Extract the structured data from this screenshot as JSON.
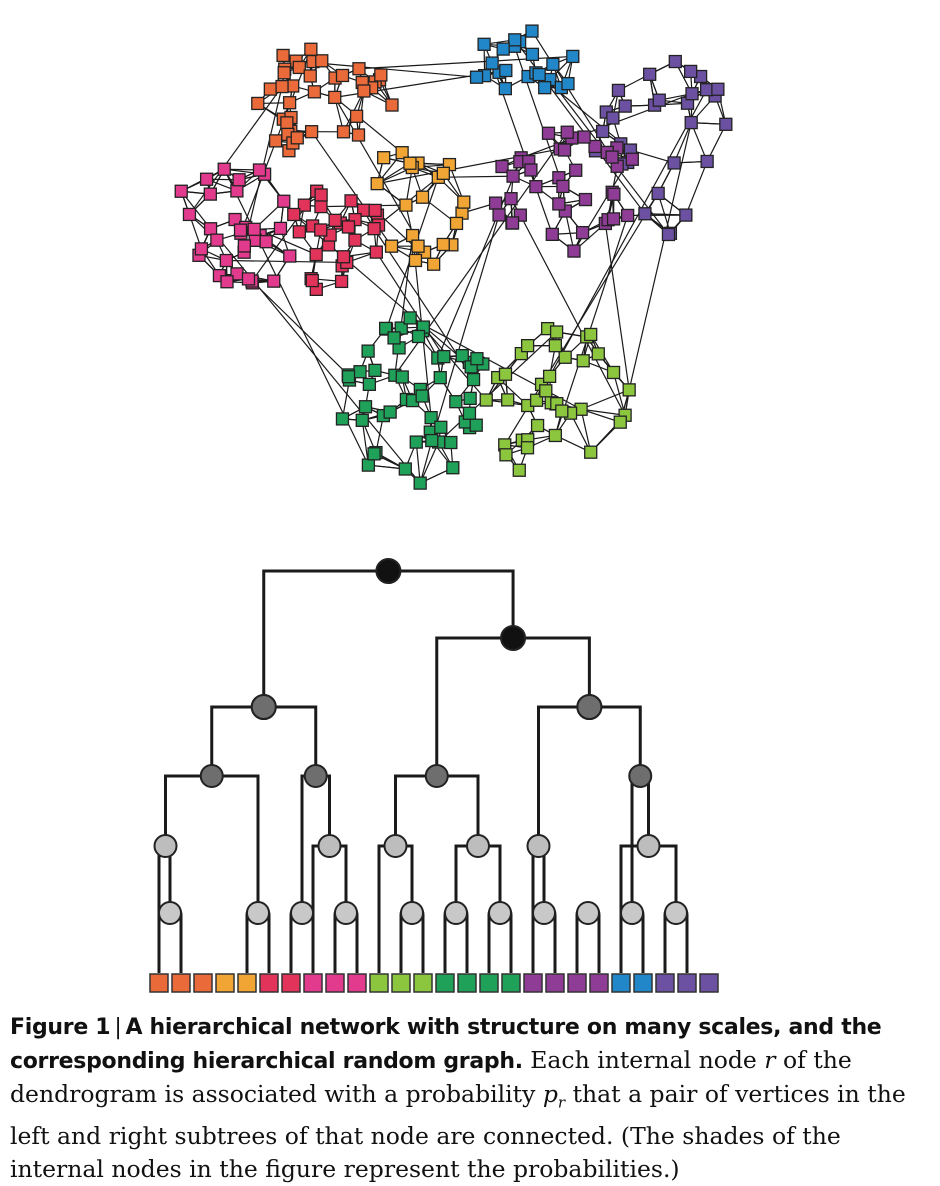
{
  "colors": {
    "orange_red": "#ea6a3a",
    "orange": "#f0a534",
    "crimson": "#e2335b",
    "pink": "#e23a8d",
    "light_green": "#8cc63e",
    "green": "#1fa15a",
    "purple": "#8e3c95",
    "blue": "#2287c8",
    "violet": "#6c51a3",
    "root_node": "#111111",
    "level1_node": "#1a1a1a",
    "level2_node": "#6e6e6e",
    "level3_node": "#9a9a9a",
    "level4_node": "#bdbdbd",
    "level5_node": "#c8c8c8"
  },
  "caption": {
    "label": "Figure 1",
    "separator": "|",
    "title": "A hierarchical network with structure on many scales, and the corresponding hierarchical random graph.",
    "text_1": "Each internal node",
    "symbol_r": "r",
    "text_2": "of the dendrogram is associated with a probability",
    "symbol_p": "p",
    "symbol_p_sub": "r",
    "text_3": "that a pair of vertices in the left and right subtrees of that node are connected. (The shades of the internal nodes in the figure represent the probabilities.)"
  },
  "dendrogram": {
    "leaf_colors": [
      "orange_red",
      "orange_red",
      "orange_red",
      "orange",
      "orange",
      "crimson",
      "crimson",
      "pink",
      "pink",
      "pink",
      "light_green",
      "light_green",
      "light_green",
      "green",
      "green",
      "green",
      "green",
      "purple",
      "purple",
      "purple",
      "purple",
      "blue",
      "blue",
      "violet",
      "violet",
      "violet"
    ]
  },
  "network": {
    "communities": [
      {
        "color": "orange_red",
        "count": 40
      },
      {
        "color": "orange",
        "count": 22
      },
      {
        "color": "pink",
        "count": 34
      },
      {
        "color": "crimson",
        "count": 30
      },
      {
        "color": "blue",
        "count": 22
      },
      {
        "color": "violet",
        "count": 30
      },
      {
        "color": "purple",
        "count": 40
      },
      {
        "color": "green",
        "count": 55
      },
      {
        "color": "light_green",
        "count": 38
      }
    ]
  }
}
